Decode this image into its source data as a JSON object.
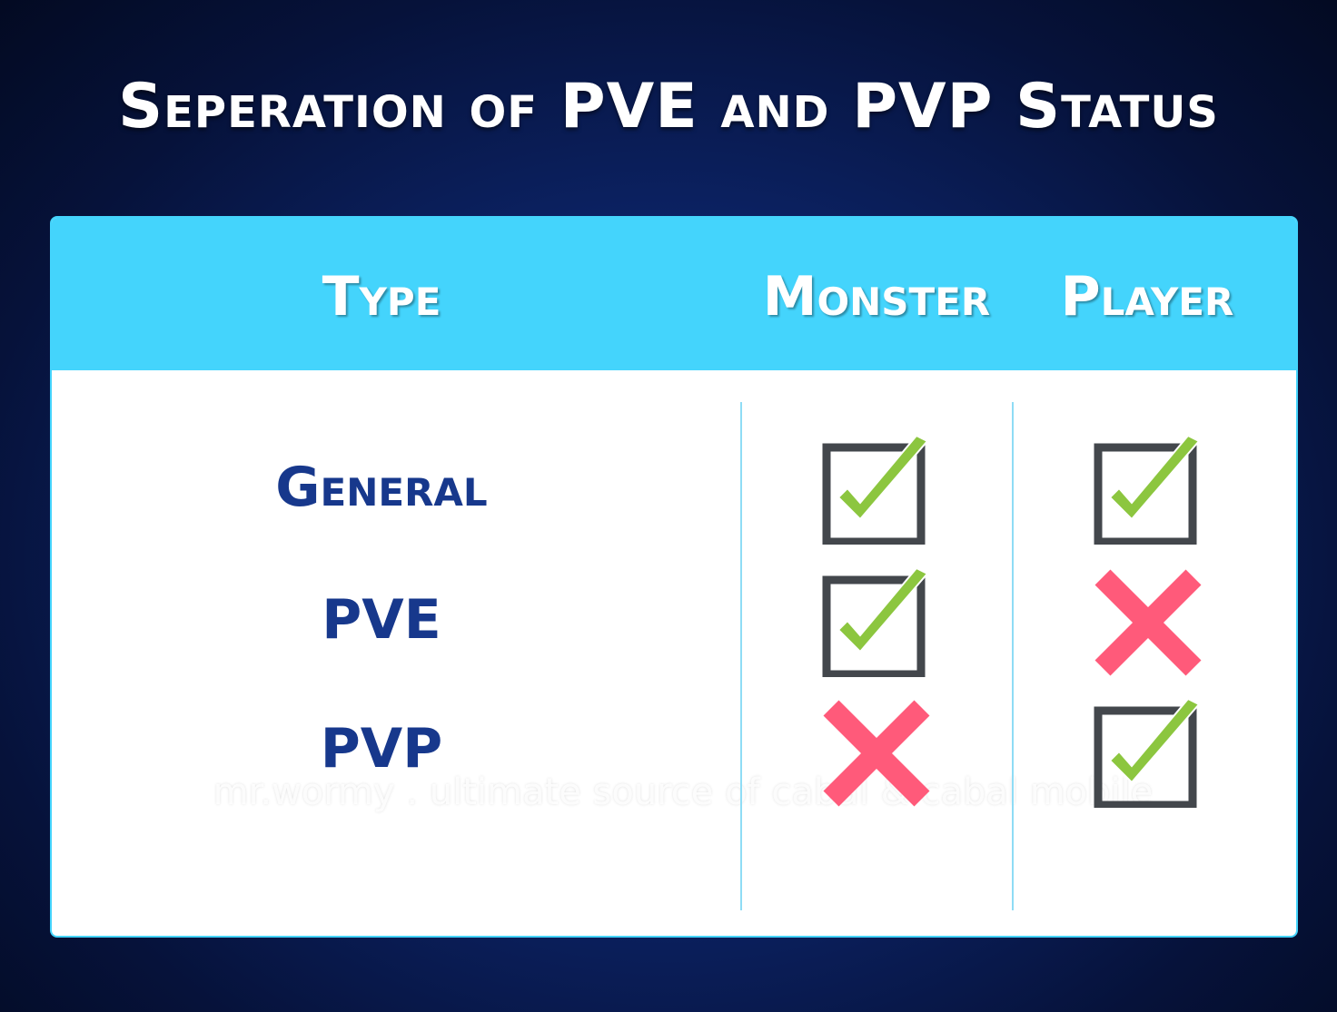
{
  "title": "Seperation of PVE and PVP Status",
  "table": {
    "headers": [
      "Type",
      "Monster",
      "Player"
    ],
    "rows": [
      {
        "type": "General",
        "monster": "check",
        "player": "check"
      },
      {
        "type": "PVE",
        "monster": "check",
        "player": "cross"
      },
      {
        "type": "PVP",
        "monster": "cross",
        "player": "check"
      }
    ]
  },
  "watermark": "mr.wormy . ultimate source of cabal & cabal mobile",
  "colors": {
    "header": "#44d4fc",
    "label": "#17388c",
    "check": "#8cc63f",
    "box": "#43474c",
    "cross": "#ff5a7a"
  }
}
